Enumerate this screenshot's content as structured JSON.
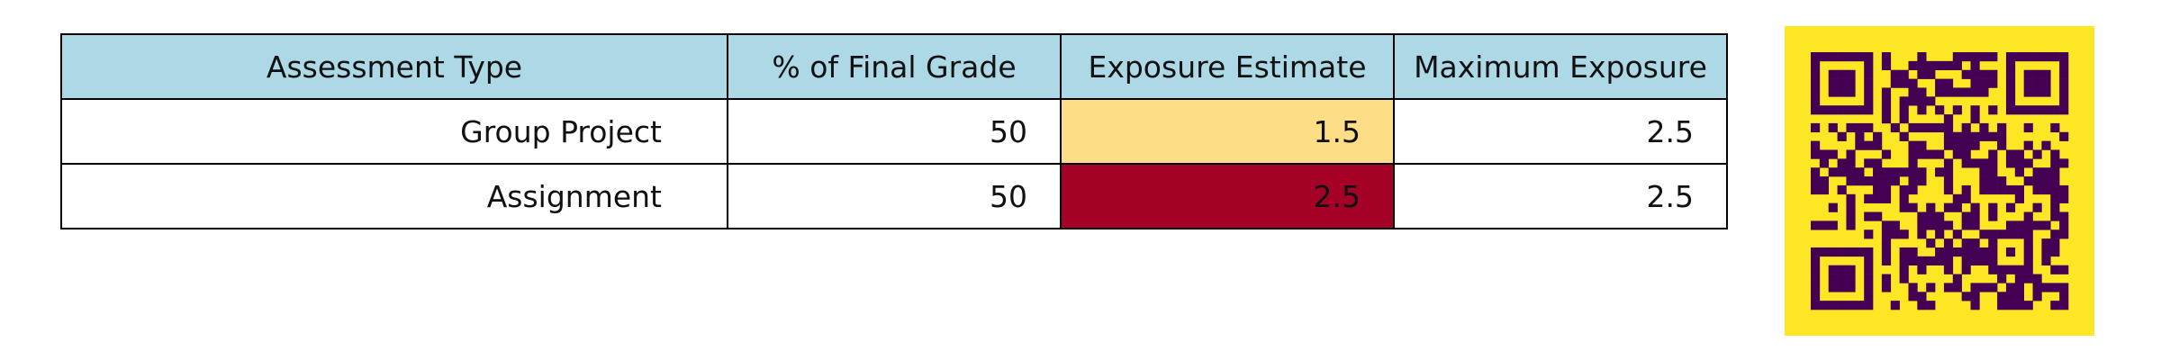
{
  "table": {
    "headers": [
      "Assessment Type",
      "% of Final Grade",
      "Exposure Estimate",
      "Maximum Exposure"
    ],
    "rows": [
      {
        "type": "Group Project",
        "percent": "50",
        "estimate": "1.5",
        "maximum": "2.5",
        "estimate_color": "#fedd87"
      },
      {
        "type": "Assignment",
        "percent": "50",
        "estimate": "2.5",
        "maximum": "2.5",
        "estimate_color": "#a50026"
      }
    ],
    "header_color": "#add8e6"
  },
  "qr_code": {
    "background_color": "#fde725",
    "module_color": "#440154"
  }
}
